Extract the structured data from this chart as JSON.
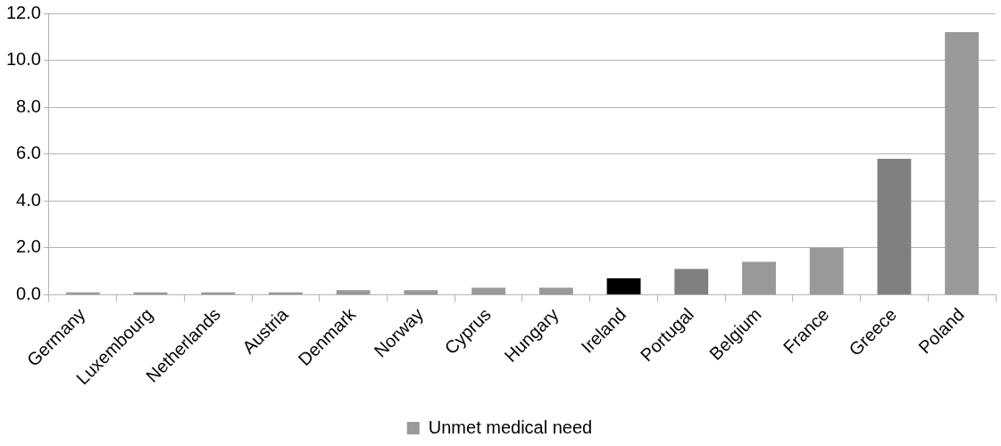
{
  "chart_data": {
    "type": "bar",
    "categories": [
      "Germany",
      "Luxembourg",
      "Netherlands",
      "Austria",
      "Denmark",
      "Norway",
      "Cyprus",
      "Hungary",
      "Ireland",
      "Portugal",
      "Belgium",
      "France",
      "Greece",
      "Poland"
    ],
    "series": [
      {
        "name": "Unmet medical need",
        "color": "#999999",
        "colors": [
          "#999999",
          "#999999",
          "#999999",
          "#999999",
          "#999999",
          "#999999",
          "#999999",
          "#999999",
          "#000000",
          "#808080",
          "#999999",
          "#999999",
          "#808080",
          "#999999"
        ],
        "values": [
          0.1,
          0.1,
          0.1,
          0.1,
          0.2,
          0.2,
          0.3,
          0.3,
          0.7,
          1.1,
          1.4,
          2.0,
          5.8,
          11.2
        ]
      }
    ],
    "ylim": [
      0,
      12
    ],
    "yticks": [
      {
        "value": 0,
        "label": "0.0"
      },
      {
        "value": 2,
        "label": "2.0"
      },
      {
        "value": 4,
        "label": "4.0"
      },
      {
        "value": 6,
        "label": "6.0"
      },
      {
        "value": 8,
        "label": "8.0"
      },
      {
        "value": 10,
        "label": "10.0"
      },
      {
        "value": 12,
        "label": "12.0"
      }
    ],
    "grid": "y",
    "legend": "bottom"
  }
}
